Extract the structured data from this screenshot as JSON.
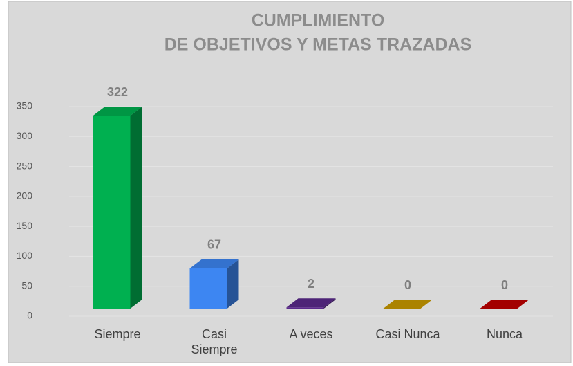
{
  "chart_data": {
    "type": "bar3d",
    "title": "CUMPLIMIENTO",
    "subtitle": "DE OBJETIVOS Y METAS TRAZADAS",
    "categories": [
      "Siempre",
      "Casi Siempre",
      "A veces",
      "Casi Nunca",
      "Nunca"
    ],
    "values": [
      322,
      67,
      2,
      0,
      0
    ],
    "colors": [
      "#00b050",
      "#3d86f2",
      "#5b2a8c",
      "#c99a00",
      "#c00000"
    ],
    "ylim": [
      0,
      350
    ],
    "yticks": [
      0,
      50,
      100,
      150,
      200,
      250,
      300,
      350
    ],
    "grid": true
  }
}
